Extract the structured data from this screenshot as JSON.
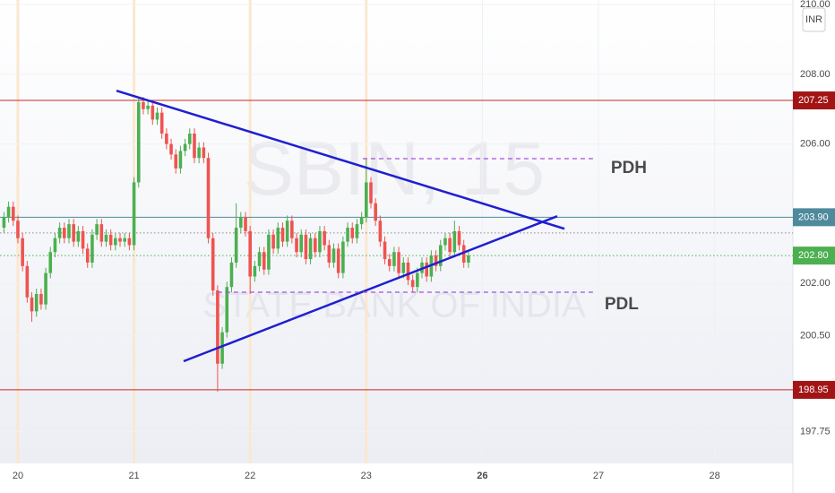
{
  "chart_data": {
    "type": "candlestick",
    "title": "SBIN, 15",
    "subtitle": "STATE BANK OF INDIA",
    "currency": "INR",
    "up_color": "#4caf50",
    "down_color": "#ef5350",
    "x": [
      -0.12,
      -0.08,
      -0.04,
      0,
      0.04,
      0.08,
      0.12,
      0.16,
      0.2,
      0.24,
      0.28,
      0.32,
      0.36,
      0.4,
      0.44,
      0.48,
      0.52,
      0.56,
      0.6,
      0.64,
      0.68,
      0.72,
      0.76,
      0.8,
      0.84,
      0.88,
      0.92,
      0.96,
      1,
      1.04,
      1.08,
      1.12,
      1.16,
      1.2,
      1.24,
      1.28,
      1.32,
      1.36,
      1.4,
      1.44,
      1.48,
      1.52,
      1.56,
      1.6,
      1.64,
      1.68,
      1.72,
      1.76,
      1.8,
      1.84,
      1.88,
      1.92,
      1.96,
      2,
      2.04,
      2.08,
      2.12,
      2.16,
      2.2,
      2.24,
      2.28,
      2.32,
      2.36,
      2.4,
      2.44,
      2.48,
      2.52,
      2.56,
      2.6,
      2.64,
      2.68,
      2.72,
      2.76,
      2.8,
      2.84,
      2.88,
      2.92,
      2.96,
      3,
      3.04,
      3.08,
      3.12,
      3.16,
      3.2,
      3.24,
      3.28,
      3.32,
      3.36,
      3.4,
      3.44,
      3.48,
      3.52,
      3.56,
      3.6,
      3.64,
      3.68,
      3.72,
      3.76,
      3.8,
      3.84,
      3.88
    ],
    "open": [
      203.6,
      203.9,
      204.2,
      203.8,
      203.3,
      202.5,
      201.6,
      201.2,
      201.7,
      201.4,
      202.3,
      202.9,
      203.3,
      203.6,
      203.3,
      203.7,
      203.2,
      203.5,
      203.0,
      202.6,
      203.4,
      203.7,
      203.2,
      203.4,
      203.1,
      203.3,
      203.2,
      203.3,
      203.1,
      204.9,
      207.2,
      207.0,
      207.1,
      206.7,
      206.9,
      206.3,
      206.0,
      205.7,
      205.3,
      205.8,
      206.0,
      206.3,
      205.6,
      205.9,
      205.6,
      203.3,
      201.8,
      199.7,
      200.6,
      201.9,
      202.6,
      203.6,
      203.9,
      203.5,
      202.2,
      202.5,
      202.9,
      202.4,
      203.4,
      203.0,
      203.6,
      203.2,
      203.8,
      203.3,
      202.9,
      203.4,
      202.7,
      203.3,
      202.9,
      203.5,
      203.1,
      202.6,
      203.0,
      202.3,
      203.2,
      203.6,
      203.3,
      203.7,
      203.9,
      204.9,
      204.3,
      203.8,
      203.2,
      202.7,
      202.5,
      202.9,
      202.3,
      202.6,
      202.1,
      201.9,
      202.3,
      202.6,
      202.2,
      202.8,
      202.5,
      203.1,
      203.3,
      202.9,
      203.5,
      203.1,
      202.6
    ],
    "high": [
      204.05,
      204.35,
      204.35,
      203.95,
      203.45,
      202.65,
      201.75,
      201.85,
      201.85,
      202.45,
      203.05,
      203.45,
      203.75,
      203.75,
      203.85,
      203.85,
      203.65,
      203.65,
      203.15,
      203.55,
      203.85,
      203.85,
      203.55,
      203.55,
      203.45,
      203.45,
      203.45,
      203.45,
      205.05,
      207.35,
      207.35,
      207.25,
      207.25,
      207.05,
      207.05,
      206.45,
      206.15,
      205.85,
      205.95,
      206.15,
      206.45,
      206.45,
      206.05,
      206.05,
      205.75,
      203.45,
      201.95,
      200.75,
      202.05,
      202.75,
      204.3,
      204.05,
      204.05,
      203.65,
      202.65,
      203.05,
      203.05,
      203.55,
      203.55,
      203.75,
      203.75,
      203.95,
      203.95,
      203.45,
      203.55,
      203.55,
      203.45,
      203.45,
      203.65,
      203.65,
      203.25,
      203.15,
      203.15,
      203.35,
      203.75,
      203.75,
      203.85,
      204.05,
      205.6,
      205.05,
      204.45,
      203.95,
      203.35,
      202.85,
      203.05,
      203.05,
      202.75,
      202.75,
      202.25,
      202.45,
      202.75,
      202.75,
      202.95,
      202.95,
      203.25,
      203.45,
      203.45,
      203.8,
      203.65,
      203.25,
      202.95
    ],
    "low": [
      203.45,
      203.75,
      203.65,
      203.15,
      202.35,
      201.45,
      200.9,
      201.05,
      201.25,
      201.25,
      202.15,
      202.75,
      203.15,
      203.15,
      203.15,
      203.05,
      203.05,
      202.85,
      202.45,
      202.45,
      203.25,
      203.05,
      203.05,
      202.95,
      202.95,
      203.05,
      203.05,
      202.95,
      202.95,
      204.75,
      206.85,
      206.85,
      206.55,
      206.55,
      206.15,
      205.85,
      205.55,
      205.15,
      205.15,
      205.65,
      205.85,
      205.45,
      205.45,
      205.45,
      203.15,
      201.65,
      198.9,
      199.55,
      200.45,
      201.75,
      202.45,
      203.45,
      203.35,
      201.7,
      202.05,
      202.35,
      202.25,
      202.25,
      202.85,
      202.85,
      203.05,
      203.05,
      203.15,
      202.75,
      202.75,
      202.55,
      202.55,
      202.75,
      202.75,
      202.95,
      202.45,
      202.45,
      202.15,
      202.15,
      203.05,
      203.15,
      203.15,
      203.55,
      203.75,
      204.15,
      203.65,
      203.05,
      202.55,
      202.35,
      202.35,
      202.15,
      202.15,
      201.95,
      201.75,
      201.75,
      202.15,
      202.05,
      202.05,
      202.35,
      202.35,
      202.95,
      202.75,
      202.75,
      202.95,
      202.45,
      202.45
    ],
    "close": [
      203.9,
      204.2,
      203.8,
      203.3,
      202.5,
      201.6,
      201.2,
      201.7,
      201.4,
      202.3,
      202.9,
      203.3,
      203.6,
      203.3,
      203.7,
      203.2,
      203.5,
      203.0,
      202.6,
      203.4,
      203.7,
      203.2,
      203.4,
      203.1,
      203.3,
      203.2,
      203.3,
      203.1,
      204.9,
      207.2,
      207.0,
      207.1,
      206.7,
      206.9,
      206.3,
      206.0,
      205.7,
      205.3,
      205.8,
      206.0,
      206.3,
      205.6,
      205.9,
      205.6,
      203.3,
      201.8,
      199.7,
      200.6,
      201.9,
      202.6,
      203.6,
      203.9,
      203.5,
      202.2,
      202.5,
      202.9,
      202.4,
      203.4,
      203.0,
      203.6,
      203.2,
      203.8,
      203.3,
      202.9,
      203.4,
      202.7,
      203.3,
      202.9,
      203.5,
      203.1,
      202.6,
      203.0,
      202.3,
      203.2,
      203.6,
      203.3,
      203.7,
      203.9,
      204.9,
      204.3,
      203.8,
      203.2,
      202.7,
      202.5,
      202.9,
      202.3,
      202.6,
      202.1,
      201.9,
      202.3,
      202.6,
      202.2,
      202.8,
      202.5,
      203.1,
      203.3,
      202.9,
      203.5,
      203.1,
      202.6,
      202.8
    ],
    "xlim": [
      -0.154,
      6.674
    ],
    "xticks": [
      {
        "value": 0,
        "label": "20"
      },
      {
        "value": 1,
        "label": "21"
      },
      {
        "value": 2,
        "label": "22"
      },
      {
        "value": 3,
        "label": "23"
      },
      {
        "value": 4,
        "label": "26",
        "bold": true
      },
      {
        "value": 5,
        "label": "27"
      },
      {
        "value": 6,
        "label": "28"
      }
    ],
    "ylim": [
      196.84,
      210.13
    ],
    "yticks": [
      {
        "value": 210,
        "label": "210.00"
      },
      {
        "value": 208,
        "label": "208.00"
      },
      {
        "value": 206,
        "label": "206.00"
      },
      {
        "value": 202,
        "label": "202.00"
      },
      {
        "value": 200.5,
        "label": "200.50"
      },
      {
        "value": 197.75,
        "label": "197.75"
      }
    ],
    "levels": [
      {
        "value": 207.25,
        "color": "#c62828",
        "style": "solid",
        "tag_color": "#a31515"
      },
      {
        "value": 203.9,
        "label": "203.90",
        "color": "#4e8a9c",
        "style": "solid",
        "tag_color": "#4e8a9c"
      },
      {
        "value": 203.45,
        "color": "#8a8a8a",
        "style": "dotted"
      },
      {
        "value": 202.8,
        "label": "202.80",
        "color": "#4caf50",
        "style": "dotted",
        "tag_color": "#4caf50"
      },
      {
        "value": 198.95,
        "color": "#c62828",
        "style": "solid",
        "tag_color": "#a31515"
      }
    ],
    "trendlines": [
      {
        "x": [
          0.849,
          4.707
        ],
        "y": [
          207.53,
          203.57
        ],
        "color": "#1f1fd1"
      },
      {
        "x": [
          1.427,
          4.645
        ],
        "y": [
          199.77,
          203.93
        ],
        "color": "#1f1fd1"
      }
    ],
    "annotations": [
      {
        "text": "PDH",
        "x": [
          2.97,
          4.96
        ],
        "y": 205.58,
        "color": "#ef5350",
        "line_color": "#a64de0"
      },
      {
        "text": "PDL",
        "x": [
          1.72,
          4.96
        ],
        "y": 201.75,
        "color": "#4caf50",
        "line_color": "#a64de0"
      }
    ]
  }
}
